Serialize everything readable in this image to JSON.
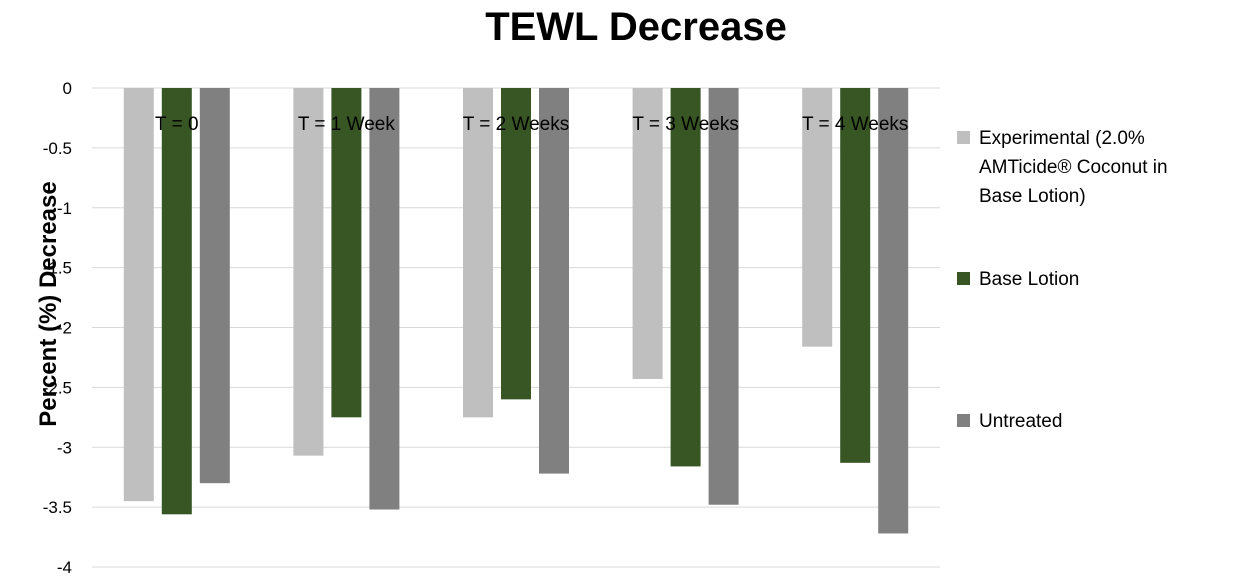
{
  "chart_data": {
    "type": "bar",
    "title": "TEWL Decrease",
    "xlabel": "",
    "ylabel": "Percent (%) Decrease",
    "ylim": [
      -4,
      0
    ],
    "yticks": [
      {
        "value": 0,
        "label": "0"
      },
      {
        "value": -0.5,
        "label": "-0.5"
      },
      {
        "value": -1,
        "label": "-1"
      },
      {
        "value": -1.5,
        "label": "-1.5"
      },
      {
        "value": -2,
        "label": "-2"
      },
      {
        "value": -2.5,
        "label": "-2.5"
      },
      {
        "value": -3,
        "label": "-3"
      },
      {
        "value": -3.5,
        "label": "-3.5"
      },
      {
        "value": -4,
        "label": "-4"
      }
    ],
    "grid": true,
    "legend_position": "right",
    "categories": [
      "T = 0",
      "T = 1 Week",
      "T = 2 Weeks",
      "T = 3 Weeks",
      "T = 4 Weeks"
    ],
    "series": [
      {
        "name": "Experimental (2.0% AMTicide® Coconut in Base Lotion)",
        "legend_lines": [
          "Experimental (2.0%",
          "AMTicide® Coconut in",
          "Base Lotion)"
        ],
        "color": "#bfbfbf",
        "values": [
          -3.45,
          -3.07,
          -2.75,
          -2.43,
          -2.16
        ]
      },
      {
        "name": "Base Lotion",
        "legend_lines": [
          "Base Lotion"
        ],
        "color": "#375623",
        "values": [
          -3.56,
          -2.75,
          -2.6,
          -3.16,
          -3.13
        ]
      },
      {
        "name": "Untreated",
        "legend_lines": [
          "Untreated"
        ],
        "color": "#808080",
        "values": [
          -3.3,
          -3.52,
          -3.22,
          -3.48,
          -3.72
        ]
      }
    ]
  }
}
